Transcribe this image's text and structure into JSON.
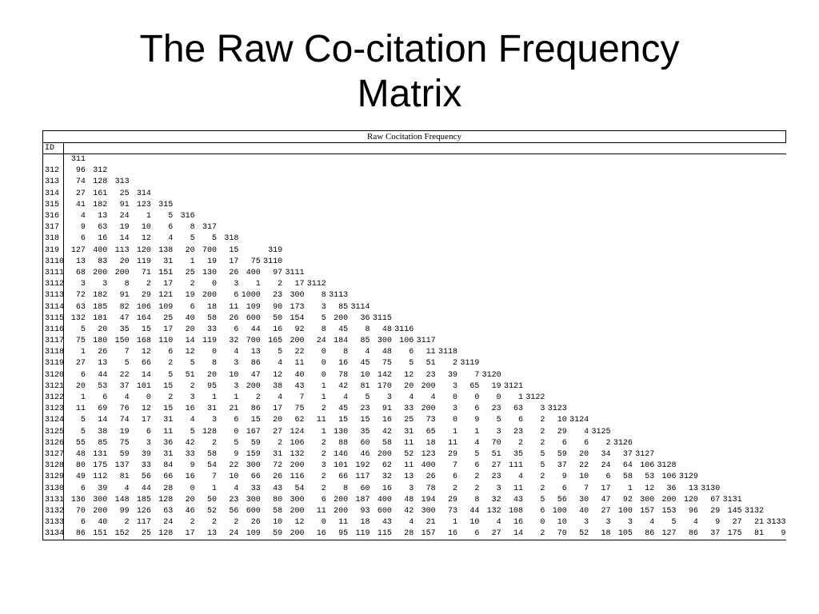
{
  "title": {
    "line1": "The Raw Co-citation Frequency",
    "line2": "Matrix"
  },
  "matrix": {
    "caption": "Raw Cocitation Frequency",
    "id_label": "ID",
    "rows": [
      {
        "id": "",
        "values": [
          "311"
        ]
      },
      {
        "id": "312",
        "values": [
          "96",
          "312"
        ]
      },
      {
        "id": "313",
        "values": [
          "74",
          "128",
          "313"
        ]
      },
      {
        "id": "314",
        "values": [
          "27",
          "161",
          "25",
          "314"
        ]
      },
      {
        "id": "315",
        "values": [
          "41",
          "182",
          "91",
          "123",
          "315"
        ]
      },
      {
        "id": "316",
        "values": [
          "4",
          "13",
          "24",
          "1",
          "5",
          "316"
        ]
      },
      {
        "id": "317",
        "values": [
          "9",
          "63",
          "19",
          "10",
          "6",
          "8",
          "317"
        ]
      },
      {
        "id": "318",
        "values": [
          "6",
          "16",
          "14",
          "12",
          "4",
          "5",
          "5",
          "318"
        ]
      },
      {
        "id": "319",
        "values": [
          "127",
          "400",
          "113",
          "120",
          "138",
          "20",
          "700",
          "15",
          "",
          "319"
        ]
      },
      {
        "id": "3110",
        "values": [
          "13",
          "83",
          "20",
          "119",
          "31",
          "1",
          "19",
          "17",
          "75",
          "3110"
        ]
      },
      {
        "id": "3111",
        "values": [
          "68",
          "200",
          "200",
          "71",
          "151",
          "25",
          "130",
          "26",
          "400",
          "97",
          "3111"
        ]
      },
      {
        "id": "3112",
        "values": [
          "3",
          "3",
          "8",
          "2",
          "17",
          "2",
          "0",
          "3",
          "1",
          "2",
          "17",
          "3112"
        ]
      },
      {
        "id": "3113",
        "values": [
          "72",
          "182",
          "91",
          "29",
          "121",
          "19",
          "200",
          "6",
          "1000",
          "23",
          "300",
          "8",
          "3113"
        ]
      },
      {
        "id": "3114",
        "values": [
          "63",
          "185",
          "82",
          "106",
          "109",
          "6",
          "18",
          "11",
          "109",
          "90",
          "173",
          "3",
          "85",
          "3114"
        ]
      },
      {
        "id": "3115",
        "values": [
          "132",
          "181",
          "47",
          "164",
          "25",
          "40",
          "58",
          "26",
          "600",
          "50",
          "154",
          "5",
          "200",
          "36",
          "3115"
        ]
      },
      {
        "id": "3116",
        "values": [
          "5",
          "20",
          "35",
          "15",
          "17",
          "20",
          "33",
          "6",
          "44",
          "16",
          "92",
          "8",
          "45",
          "8",
          "48",
          "3116"
        ]
      },
      {
        "id": "3117",
        "values": [
          "75",
          "180",
          "150",
          "168",
          "110",
          "14",
          "119",
          "32",
          "700",
          "165",
          "200",
          "24",
          "184",
          "85",
          "300",
          "106",
          "3117"
        ]
      },
      {
        "id": "3118",
        "values": [
          "1",
          "26",
          "7",
          "12",
          "6",
          "12",
          "0",
          "4",
          "13",
          "5",
          "22",
          "0",
          "8",
          "4",
          "48",
          "6",
          "11",
          "3118"
        ]
      },
      {
        "id": "3119",
        "values": [
          "27",
          "13",
          "5",
          "66",
          "2",
          "5",
          "8",
          "3",
          "86",
          "4",
          "11",
          "0",
          "16",
          "45",
          "75",
          "5",
          "51",
          "2",
          "3119"
        ]
      },
      {
        "id": "3120",
        "values": [
          "6",
          "44",
          "22",
          "14",
          "5",
          "51",
          "20",
          "10",
          "47",
          "12",
          "40",
          "0",
          "78",
          "10",
          "142",
          "12",
          "23",
          "39",
          "7",
          "3120"
        ]
      },
      {
        "id": "3121",
        "values": [
          "20",
          "53",
          "37",
          "101",
          "15",
          "2",
          "95",
          "3",
          "200",
          "38",
          "43",
          "1",
          "42",
          "81",
          "170",
          "20",
          "200",
          "3",
          "65",
          "19",
          "3121"
        ]
      },
      {
        "id": "3122",
        "values": [
          "1",
          "6",
          "4",
          "0",
          "2",
          "3",
          "1",
          "1",
          "2",
          "4",
          "7",
          "1",
          "4",
          "5",
          "3",
          "4",
          "4",
          "0",
          "0",
          "0",
          "1",
          "3122"
        ]
      },
      {
        "id": "3123",
        "values": [
          "11",
          "69",
          "76",
          "12",
          "15",
          "16",
          "31",
          "21",
          "86",
          "17",
          "75",
          "2",
          "45",
          "23",
          "91",
          "33",
          "200",
          "3",
          "6",
          "23",
          "63",
          "3",
          "3123"
        ]
      },
      {
        "id": "3124",
        "values": [
          "5",
          "14",
          "74",
          "17",
          "31",
          "4",
          "3",
          "6",
          "15",
          "20",
          "62",
          "11",
          "15",
          "15",
          "16",
          "25",
          "73",
          "0",
          "9",
          "5",
          "6",
          "2",
          "10",
          "3124"
        ]
      },
      {
        "id": "3125",
        "values": [
          "5",
          "38",
          "19",
          "6",
          "11",
          "5",
          "128",
          "0",
          "167",
          "27",
          "124",
          "1",
          "130",
          "35",
          "42",
          "31",
          "65",
          "1",
          "1",
          "3",
          "23",
          "2",
          "29",
          "4",
          "3125"
        ]
      },
      {
        "id": "3126",
        "values": [
          "55",
          "85",
          "75",
          "3",
          "36",
          "42",
          "2",
          "5",
          "59",
          "2",
          "106",
          "2",
          "88",
          "60",
          "58",
          "11",
          "18",
          "11",
          "4",
          "70",
          "2",
          "2",
          "6",
          "6",
          "2",
          "3126"
        ]
      },
      {
        "id": "3127",
        "values": [
          "48",
          "131",
          "59",
          "39",
          "31",
          "33",
          "58",
          "9",
          "159",
          "31",
          "132",
          "2",
          "146",
          "46",
          "200",
          "52",
          "123",
          "29",
          "5",
          "51",
          "35",
          "5",
          "59",
          "20",
          "34",
          "37",
          "3127"
        ]
      },
      {
        "id": "3128",
        "values": [
          "80",
          "175",
          "137",
          "33",
          "84",
          "9",
          "54",
          "22",
          "300",
          "72",
          "200",
          "3",
          "101",
          "192",
          "62",
          "11",
          "400",
          "7",
          "6",
          "27",
          "111",
          "5",
          "37",
          "22",
          "24",
          "64",
          "106",
          "3128"
        ]
      },
      {
        "id": "3129",
        "values": [
          "49",
          "112",
          "81",
          "56",
          "66",
          "16",
          "7",
          "10",
          "66",
          "26",
          "116",
          "2",
          "66",
          "117",
          "32",
          "13",
          "26",
          "6",
          "2",
          "23",
          "4",
          "2",
          "9",
          "10",
          "6",
          "58",
          "53",
          "106",
          "3129"
        ]
      },
      {
        "id": "3130",
        "values": [
          "6",
          "39",
          "4",
          "44",
          "28",
          "0",
          "1",
          "4",
          "33",
          "43",
          "54",
          "2",
          "8",
          "60",
          "16",
          "3",
          "78",
          "2",
          "2",
          "3",
          "11",
          "2",
          "6",
          "7",
          "17",
          "1",
          "12",
          "36",
          "13",
          "3130"
        ]
      },
      {
        "id": "3131",
        "values": [
          "136",
          "300",
          "148",
          "185",
          "128",
          "20",
          "50",
          "23",
          "300",
          "80",
          "300",
          "6",
          "200",
          "187",
          "400",
          "48",
          "194",
          "29",
          "8",
          "32",
          "43",
          "5",
          "56",
          "30",
          "47",
          "92",
          "300",
          "200",
          "120",
          "67",
          "3131"
        ]
      },
      {
        "id": "3132",
        "values": [
          "70",
          "200",
          "99",
          "126",
          "63",
          "46",
          "52",
          "56",
          "600",
          "58",
          "200",
          "11",
          "200",
          "93",
          "600",
          "42",
          "300",
          "73",
          "44",
          "132",
          "108",
          "6",
          "100",
          "40",
          "27",
          "100",
          "157",
          "153",
          "96",
          "29",
          "145",
          "3132"
        ]
      },
      {
        "id": "3133",
        "values": [
          "6",
          "40",
          "2",
          "117",
          "24",
          "2",
          "2",
          "2",
          "26",
          "10",
          "12",
          "0",
          "11",
          "18",
          "43",
          "4",
          "21",
          "1",
          "10",
          "4",
          "16",
          "0",
          "10",
          "3",
          "3",
          "3",
          "4",
          "5",
          "4",
          "9",
          "27",
          "21",
          "3133"
        ]
      },
      {
        "id": "3134",
        "values": [
          "86",
          "151",
          "152",
          "25",
          "128",
          "17",
          "13",
          "24",
          "109",
          "59",
          "200",
          "16",
          "95",
          "119",
          "115",
          "28",
          "157",
          "16",
          "6",
          "27",
          "14",
          "2",
          "70",
          "52",
          "18",
          "105",
          "86",
          "127",
          "86",
          "37",
          "175",
          "81",
          "9"
        ]
      }
    ]
  }
}
